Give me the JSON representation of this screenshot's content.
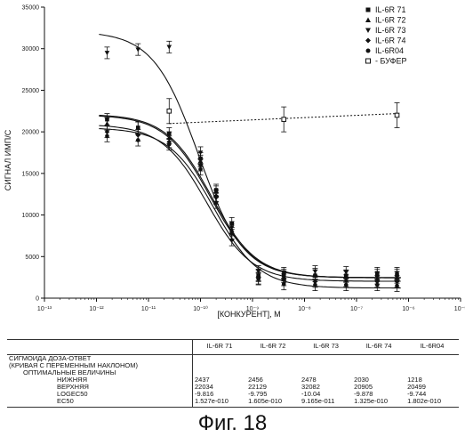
{
  "chart_data": {
    "type": "scatter",
    "title": "",
    "xlabel": "[КОНКУРЕНТ], М",
    "ylabel": "СИГНАЛ ИМП/С",
    "x_scale": "log",
    "xlim": [
      1e-13,
      1e-05
    ],
    "ylim": [
      0,
      35000
    ],
    "x_ticks": [
      "10⁻¹³",
      "10⁻¹²",
      "10⁻¹¹",
      "10⁻¹⁰",
      "10⁻⁹",
      "10⁻⁸",
      "10⁻⁷",
      "10⁻⁶",
      "10⁻⁵"
    ],
    "y_ticks": [
      "0",
      "5000",
      "10000",
      "15000",
      "20000",
      "25000",
      "30000",
      "35000"
    ],
    "legend_position": "top-right",
    "series": [
      {
        "name": "IL-6R 71",
        "marker": "square",
        "x": [
          1.6e-12,
          6.3e-12,
          2.5e-11,
          1e-10,
          2e-10,
          4e-10,
          1.3e-09,
          4e-09,
          1.6e-08,
          6.3e-08,
          2.5e-07,
          6e-07
        ],
        "y": [
          21500,
          20500,
          19800,
          16800,
          13000,
          9000,
          2700,
          2800,
          2700,
          2700,
          2800,
          2800
        ],
        "curve": {
          "bottom": 2437,
          "top": 22034,
          "logec50": -9.816
        }
      },
      {
        "name": "IL-6R 72",
        "marker": "triangle-up",
        "x": [
          1.6e-12,
          6.3e-12,
          2.5e-11,
          1e-10,
          2e-10,
          4e-10,
          1.3e-09,
          4e-09,
          1.6e-08,
          6.3e-08,
          2.5e-07,
          6e-07
        ],
        "y": [
          21000,
          20500,
          19300,
          16500,
          12800,
          8200,
          2800,
          2600,
          2900,
          2600,
          2400,
          2500
        ],
        "curve": {
          "bottom": 2456,
          "top": 22129,
          "logec50": -9.795
        }
      },
      {
        "name": "IL-6R 73",
        "marker": "triangle-down",
        "x": [
          1.6e-12,
          6.3e-12,
          2.5e-11,
          1e-10,
          2e-10,
          4e-10,
          1.3e-09,
          4e-09,
          1.6e-08,
          6.3e-08,
          2.5e-07,
          6e-07
        ],
        "y": [
          29500,
          29900,
          30200,
          17500,
          12000,
          8500,
          3200,
          3000,
          3200,
          3100,
          3000,
          3000
        ],
        "curve": {
          "bottom": 2478,
          "top": 32082,
          "logec50": -10.04
        }
      },
      {
        "name": "IL-6R 74",
        "marker": "diamond",
        "x": [
          1.6e-12,
          6.3e-12,
          2.5e-11,
          1e-10,
          2e-10,
          4e-10,
          1.3e-09,
          4e-09,
          1.6e-08,
          6.3e-08,
          2.5e-07,
          6e-07
        ],
        "y": [
          20000,
          19600,
          18800,
          16000,
          12300,
          7000,
          2400,
          2200,
          2000,
          2100,
          2000,
          2000
        ],
        "curve": {
          "bottom": 2030,
          "top": 20905,
          "logec50": -9.878
        }
      },
      {
        "name": "IL-6R04",
        "marker": "circle",
        "x": [
          1.6e-12,
          6.3e-12,
          2.5e-11,
          1e-10,
          2e-10,
          4e-10,
          1.3e-09,
          4e-09,
          1.6e-08,
          6.3e-08,
          2.5e-07,
          6e-07
        ],
        "y": [
          19500,
          19000,
          18500,
          15500,
          11500,
          7800,
          2300,
          1700,
          1600,
          1600,
          1600,
          1500
        ],
        "curve": {
          "bottom": 1218,
          "top": 20499,
          "logec50": -9.744
        }
      },
      {
        "name": "- БУФЕР",
        "marker": "open-square",
        "x": [
          2.5e-11,
          4e-09,
          6e-07
        ],
        "y": [
          22500,
          21500,
          22000
        ],
        "err": [
          1500,
          1500,
          1500
        ],
        "curve": {
          "type": "flat-dotted",
          "y_start": 21000,
          "y_end": 22200
        }
      }
    ]
  },
  "table": {
    "columns": [
      "IL-6R 71",
      "IL-6R 72",
      "IL-6R 73",
      "IL-6R 74",
      "IL-6R04"
    ],
    "header_lines": [
      "СИГМОИДА ДОЗА-ОТВЕТ",
      "(КРИВАЯ С ПЕРЕМЕННЫМ НАКЛОНОМ)",
      "ОПТИМАЛЬНЫЕ ВЕЛИЧИНЫ"
    ],
    "rows": [
      {
        "label": "НИЖНЯЯ",
        "values": [
          "2437",
          "2456",
          "2478",
          "2030",
          "1218"
        ]
      },
      {
        "label": "ВЕРХНЯЯ",
        "values": [
          "22034",
          "22129",
          "32082",
          "20905",
          "20499"
        ]
      },
      {
        "label": "LOGEC50",
        "values": [
          "-9.816",
          "-9.795",
          "-10.04",
          "-9.878",
          "-9.744"
        ]
      },
      {
        "label": "EC50",
        "values": [
          "1.527e-010",
          "1.605e-010",
          "9.165e-011",
          "1.325e-010",
          "1.802e-010"
        ]
      }
    ]
  },
  "caption": "Фиг. 18",
  "colors": {
    "ink": "#111111",
    "background": "#ffffff"
  }
}
